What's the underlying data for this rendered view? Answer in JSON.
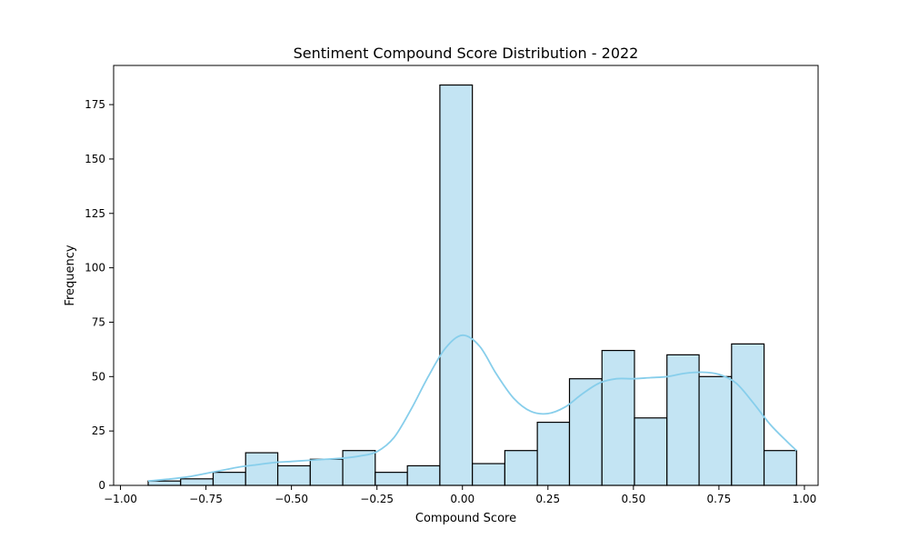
{
  "chart_data": {
    "type": "bar",
    "title": "Sentiment Compound Score Distribution - 2022",
    "xlabel": "Compound Score",
    "ylabel": "Frequency",
    "xlim": [
      -1.02,
      1.04
    ],
    "ylim": [
      0,
      193
    ],
    "x_ticks": [
      -1.0,
      -0.75,
      -0.5,
      -0.25,
      0.0,
      0.25,
      0.5,
      0.75,
      1.0
    ],
    "x_tick_labels": [
      "−1.00",
      "−0.75",
      "−0.50",
      "−0.25",
      "0.00",
      "0.25",
      "0.50",
      "0.75",
      "1.00"
    ],
    "y_ticks": [
      0,
      25,
      50,
      75,
      100,
      125,
      150,
      175
    ],
    "y_tick_labels": [
      "0",
      "25",
      "50",
      "75",
      "100",
      "125",
      "150",
      "175"
    ],
    "grid": false,
    "bar_color": "#c3e4f3",
    "edge_color": "#000000",
    "kde_color": "#87ceeb",
    "bins": [
      {
        "x0": -0.919,
        "x1": -0.824,
        "count": 2
      },
      {
        "x0": -0.824,
        "x1": -0.729,
        "count": 3
      },
      {
        "x0": -0.729,
        "x1": -0.634,
        "count": 6
      },
      {
        "x0": -0.634,
        "x1": -0.54,
        "count": 15
      },
      {
        "x0": -0.54,
        "x1": -0.445,
        "count": 9
      },
      {
        "x0": -0.445,
        "x1": -0.35,
        "count": 12
      },
      {
        "x0": -0.35,
        "x1": -0.255,
        "count": 16
      },
      {
        "x0": -0.255,
        "x1": -0.161,
        "count": 6
      },
      {
        "x0": -0.161,
        "x1": -0.066,
        "count": 9
      },
      {
        "x0": -0.066,
        "x1": 0.029,
        "count": 184
      },
      {
        "x0": 0.029,
        "x1": 0.124,
        "count": 10
      },
      {
        "x0": 0.124,
        "x1": 0.219,
        "count": 16
      },
      {
        "x0": 0.219,
        "x1": 0.313,
        "count": 29
      },
      {
        "x0": 0.313,
        "x1": 0.408,
        "count": 49
      },
      {
        "x0": 0.408,
        "x1": 0.503,
        "count": 62
      },
      {
        "x0": 0.503,
        "x1": 0.598,
        "count": 31
      },
      {
        "x0": 0.598,
        "x1": 0.692,
        "count": 60
      },
      {
        "x0": 0.692,
        "x1": 0.787,
        "count": 50
      },
      {
        "x0": 0.787,
        "x1": 0.882,
        "count": 65
      },
      {
        "x0": 0.882,
        "x1": 0.977,
        "count": 16
      }
    ],
    "kde": {
      "x": [
        -0.919,
        -0.85,
        -0.8,
        -0.75,
        -0.7,
        -0.65,
        -0.6,
        -0.55,
        -0.5,
        -0.45,
        -0.4,
        -0.35,
        -0.3,
        -0.25,
        -0.2,
        -0.15,
        -0.1,
        -0.05,
        0.0,
        0.05,
        0.1,
        0.15,
        0.2,
        0.25,
        0.3,
        0.35,
        0.4,
        0.45,
        0.5,
        0.55,
        0.6,
        0.65,
        0.7,
        0.75,
        0.8,
        0.85,
        0.9,
        0.95,
        0.977
      ],
      "y": [
        2,
        3,
        4,
        5.5,
        7,
        8.5,
        9.5,
        10.5,
        11,
        11.5,
        12,
        12.5,
        13.5,
        15.5,
        22,
        35,
        50,
        63,
        69,
        64,
        51,
        40,
        34,
        33,
        36,
        42,
        47,
        49,
        49,
        49.5,
        50,
        51.5,
        52,
        51,
        47,
        38,
        28,
        20,
        16
      ]
    }
  }
}
